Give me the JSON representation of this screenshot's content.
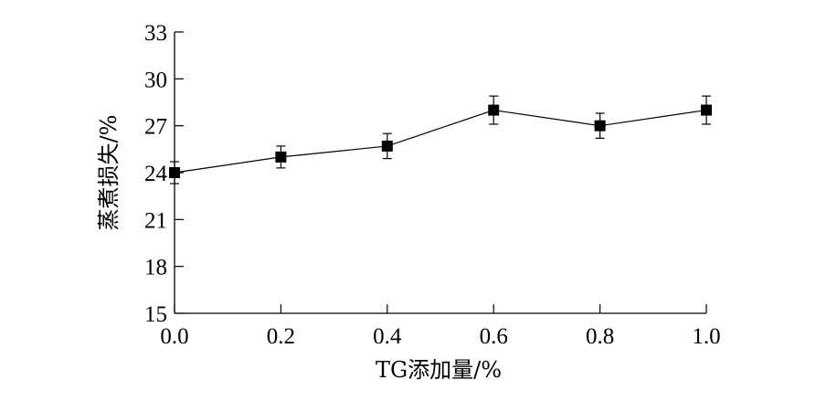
{
  "chart_data": {
    "type": "line",
    "title": "",
    "xlabel": "TG添加量/%",
    "ylabel": "蒸煮损失/%",
    "x": [
      0.0,
      0.2,
      0.4,
      0.6,
      0.8,
      1.0
    ],
    "x_tick_labels": [
      "0.0",
      "0.2",
      "0.4",
      "0.6",
      "0.8",
      "1.0"
    ],
    "y_ticks": [
      15,
      18,
      21,
      24,
      27,
      30,
      33
    ],
    "y_tick_labels": [
      "15",
      "18",
      "21",
      "24",
      "27",
      "30",
      "33"
    ],
    "xlim": [
      0.0,
      1.0
    ],
    "ylim": [
      15,
      33
    ],
    "grid": false,
    "legend": "none",
    "series": [
      {
        "values": [
          24.0,
          25.0,
          25.7,
          28.0,
          27.0,
          28.0
        ],
        "error": [
          0.7,
          0.7,
          0.8,
          0.9,
          0.8,
          0.9
        ],
        "marker": "square",
        "color": "#000000"
      }
    ]
  }
}
